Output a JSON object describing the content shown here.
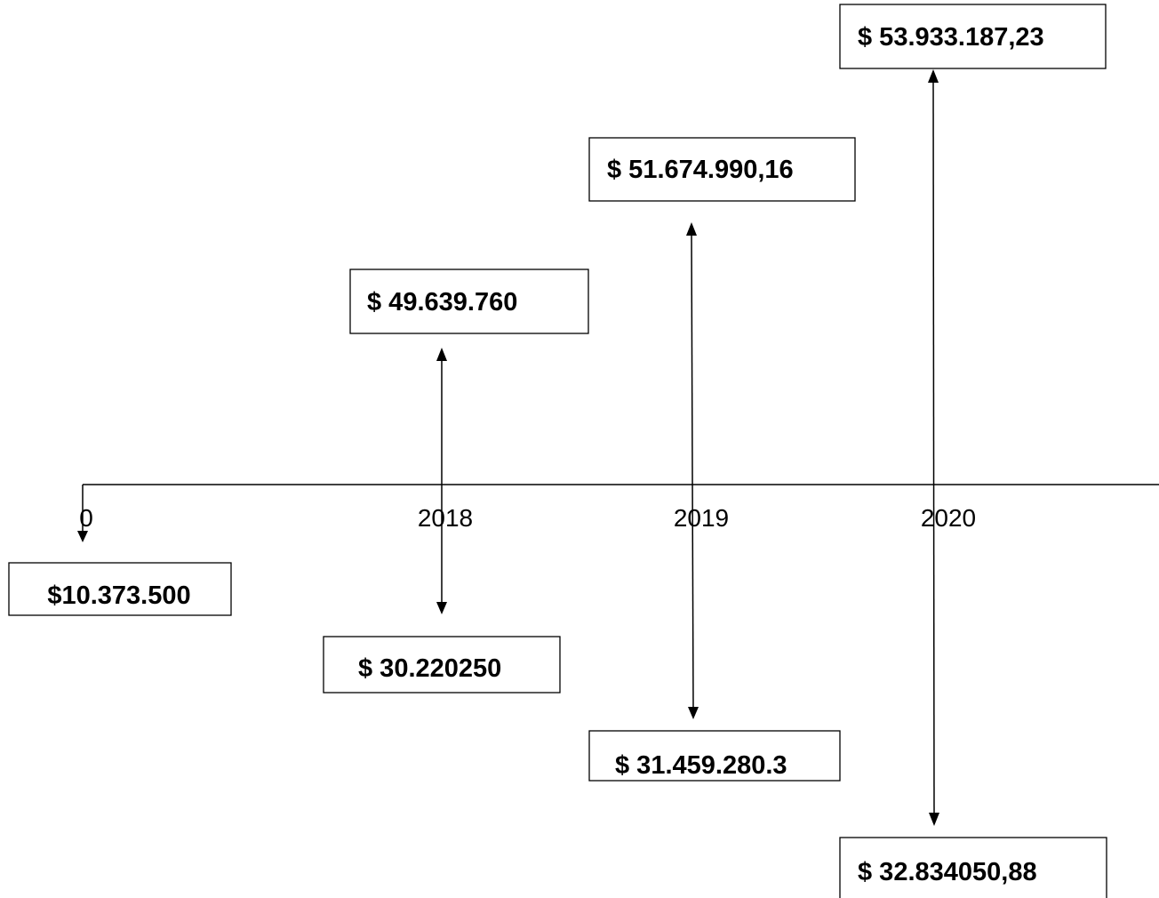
{
  "periods": [
    {
      "label": "0",
      "outflow": "$10.373.500"
    },
    {
      "label": "2018",
      "inflow": "$ 49.639.760",
      "outflow": "$ 30.220250"
    },
    {
      "label": "2019",
      "inflow": "$ 51.674.990,16",
      "outflow": "$ 31.459.280.3"
    },
    {
      "label": "2020",
      "inflow": "$ 53.933.187,23",
      "outflow": "$ 32.834050,88"
    }
  ]
}
